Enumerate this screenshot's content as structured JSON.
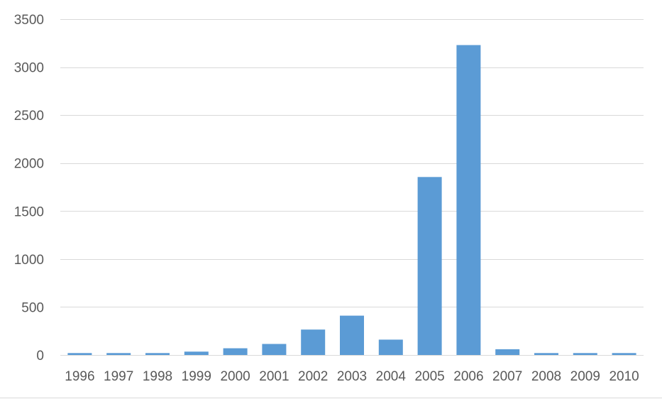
{
  "chart_data": {
    "type": "bar",
    "title": "",
    "xlabel": "",
    "ylabel": "",
    "categories": [
      "1996",
      "1997",
      "1998",
      "1999",
      "2000",
      "2001",
      "2002",
      "2003",
      "2004",
      "2005",
      "2006",
      "2007",
      "2008",
      "2009",
      "2010"
    ],
    "series": [
      {
        "values": [
          20,
          20,
          20,
          35,
          70,
          115,
          265,
          410,
          160,
          1855,
          3230,
          60,
          20,
          20,
          20
        ]
      }
    ],
    "ylim": [
      0,
      3500
    ],
    "yticks": [
      0,
      500,
      1000,
      1500,
      2000,
      2500,
      3000,
      3500
    ],
    "ytick_labels": [
      "0",
      "500",
      "1000",
      "1500",
      "2000",
      "2500",
      "3000",
      "3500"
    ],
    "grid": true,
    "legend": "none",
    "colors": {
      "bar": "#5b9bd5",
      "grid": "#d9d9d9",
      "text": "#595959"
    }
  }
}
